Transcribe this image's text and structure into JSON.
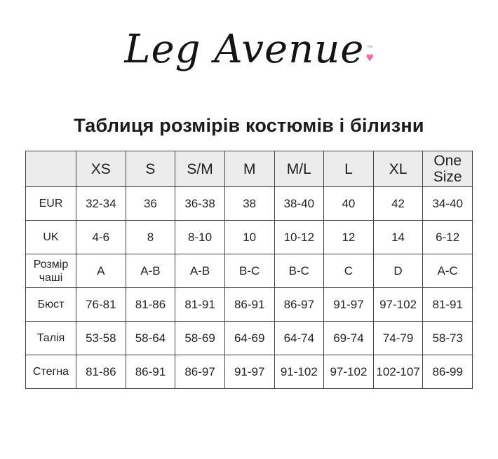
{
  "logo": {
    "text": "Leg Avenue",
    "tm": "™",
    "heart": "♥"
  },
  "title": "Таблиця розмірів костюмів і білизни",
  "table": {
    "header": [
      "",
      "XS",
      "S",
      "S/M",
      "M",
      "M/L",
      "L",
      "XL",
      "One Size"
    ],
    "rows": [
      {
        "label": "EUR",
        "values": [
          "32-34",
          "36",
          "36-38",
          "38",
          "38-40",
          "40",
          "42",
          "34-40"
        ]
      },
      {
        "label": "UK",
        "values": [
          "4-6",
          "8",
          "8-10",
          "10",
          "10-12",
          "12",
          "14",
          "6-12"
        ]
      },
      {
        "label": "Розмір чаші",
        "values": [
          "A",
          "A-B",
          "A-B",
          "B-C",
          "B-C",
          "C",
          "D",
          "A-C"
        ]
      },
      {
        "label": "Бюст",
        "values": [
          "76-81",
          "81-86",
          "81-91",
          "86-91",
          "86-97",
          "91-97",
          "97-102",
          "81-91"
        ]
      },
      {
        "label": "Талія",
        "values": [
          "53-58",
          "58-64",
          "58-69",
          "64-69",
          "64-74",
          "69-74",
          "74-79",
          "58-73"
        ]
      },
      {
        "label": "Стегна",
        "values": [
          "81-86",
          "86-91",
          "86-97",
          "91-97",
          "91-102",
          "97-102",
          "102-107",
          "86-99"
        ]
      }
    ]
  },
  "colors": {
    "header_bg": "#ececec",
    "border": "#444444",
    "text": "#222222",
    "heart_pink": "#f06ba2"
  }
}
